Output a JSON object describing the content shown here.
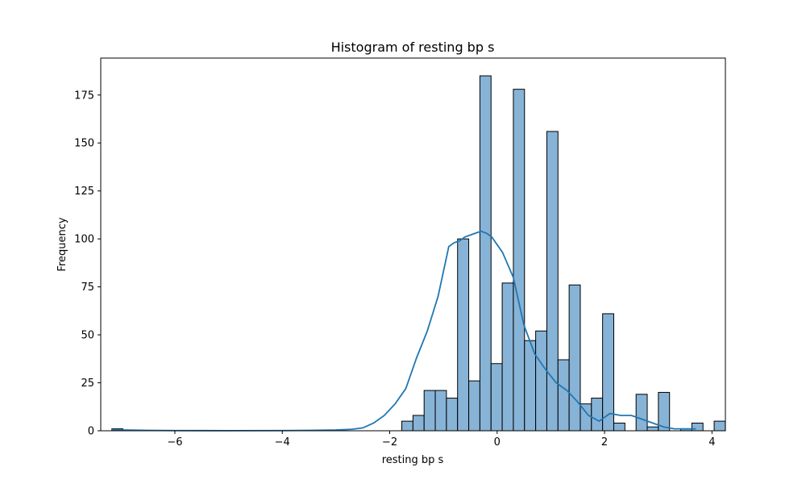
{
  "chart_data": {
    "type": "bar",
    "title": "Histogram of resting bp s",
    "xlabel": "resting bp s",
    "ylabel": "Frequency",
    "xlim": [
      -7.38,
      4.25
    ],
    "ylim": [
      0,
      194.25
    ],
    "x_ticks": [
      -6,
      -4,
      -2,
      0,
      2,
      4
    ],
    "x_tick_labels": [
      "−6",
      "−4",
      "−2",
      "0",
      "2",
      "4"
    ],
    "y_ticks": [
      0,
      25,
      50,
      75,
      100,
      125,
      150,
      175
    ],
    "y_tick_labels": [
      "0",
      "25",
      "50",
      "75",
      "100",
      "125",
      "150",
      "175"
    ],
    "grid": false,
    "bins": {
      "start": -7.175,
      "width": 0.2077,
      "counts": [
        1,
        0,
        0,
        0,
        0,
        0,
        0,
        0,
        0,
        0,
        0,
        0,
        0,
        0,
        0,
        0,
        0,
        0,
        0,
        0,
        0,
        0,
        0,
        0,
        0,
        0,
        5,
        8,
        21,
        21,
        17,
        100,
        26,
        185,
        35,
        77,
        178,
        47,
        52,
        156,
        37,
        76,
        14,
        17,
        61,
        4,
        0,
        19,
        2,
        20,
        0,
        1,
        4,
        0,
        5
      ]
    },
    "kde": {
      "x": [
        -7.18,
        -6.5,
        -6.0,
        -5.0,
        -4.0,
        -3.5,
        -3.0,
        -2.7,
        -2.5,
        -2.3,
        -2.1,
        -1.9,
        -1.7,
        -1.5,
        -1.3,
        -1.1,
        -0.9,
        -0.8,
        -0.7,
        -0.6,
        -0.5,
        -0.4,
        -0.3,
        -0.2,
        -0.1,
        0.0,
        0.1,
        0.3,
        0.5,
        0.7,
        0.9,
        1.1,
        1.3,
        1.5,
        1.7,
        1.9,
        2.1,
        2.3,
        2.5,
        2.7,
        2.9,
        3.1,
        3.3,
        3.5,
        3.7
      ],
      "y": [
        0.5,
        0.2,
        0.1,
        0.05,
        0.1,
        0.2,
        0.4,
        0.8,
        1.5,
        4,
        8,
        14,
        22,
        38,
        52,
        70,
        96,
        98,
        99,
        101,
        102,
        103,
        104,
        103,
        101,
        97,
        93,
        80,
        55,
        40,
        32,
        25,
        21,
        15,
        8,
        5,
        9,
        8,
        8,
        6,
        4,
        2,
        1,
        1,
        1
      ]
    },
    "colors": {
      "bar_fill": "#87b3d6",
      "bar_edge": "#000000",
      "kde_line": "#1f77b4"
    }
  }
}
